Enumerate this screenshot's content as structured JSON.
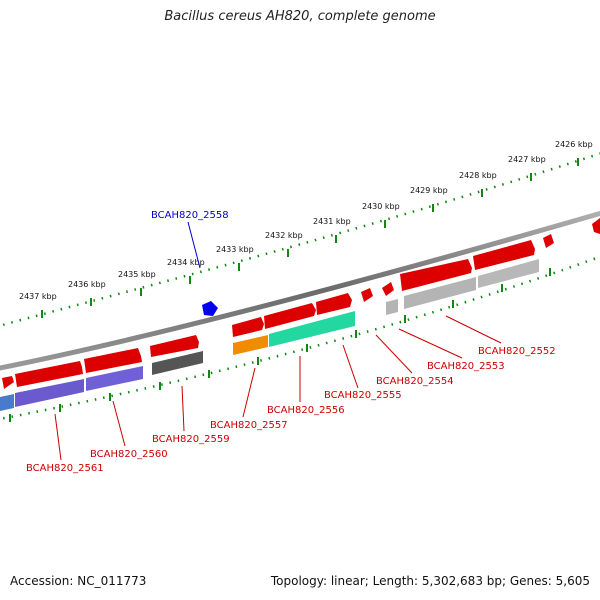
{
  "title": "Bacillus cereus AH820, complete genome",
  "footer": {
    "accession": "Accession: NC_011773",
    "topology": "Topology: linear; Length: 5,302,683 bp; Genes: 5,605"
  },
  "ticks": [
    {
      "kbp": 2437,
      "label": "2437 kbp"
    },
    {
      "kbp": 2436,
      "label": "2436 kbp"
    },
    {
      "kbp": 2435,
      "label": "2435 kbp"
    },
    {
      "kbp": 2434,
      "label": "2434 kbp"
    },
    {
      "kbp": 2433,
      "label": "2433 kbp"
    },
    {
      "kbp": 2432,
      "label": "2432 kbp"
    },
    {
      "kbp": 2431,
      "label": "2431 kbp"
    },
    {
      "kbp": 2430,
      "label": "2430 kbp"
    },
    {
      "kbp": 2429,
      "label": "2429 kbp"
    },
    {
      "kbp": 2428,
      "label": "2428 kbp"
    },
    {
      "kbp": 2427,
      "label": "2427 kbp"
    },
    {
      "kbp": 2426,
      "label": "2426 kbp"
    }
  ],
  "genes": [
    {
      "name": "BCAH820_2552",
      "color": "#dd0000"
    },
    {
      "name": "BCAH820_2553",
      "color": "#dd0000"
    },
    {
      "name": "BCAH820_2554",
      "color": "#dd0000"
    },
    {
      "name": "BCAH820_2555",
      "color": "#dd0000"
    },
    {
      "name": "BCAH820_2556",
      "color": "#dd0000"
    },
    {
      "name": "BCAH820_2557",
      "color": "#dd0000"
    },
    {
      "name": "BCAH820_2558",
      "color": "#0000cc"
    },
    {
      "name": "BCAH820_2559",
      "color": "#dd0000"
    },
    {
      "name": "BCAH820_2560",
      "color": "#dd0000"
    },
    {
      "name": "BCAH820_2561",
      "color": "#dd0000"
    }
  ],
  "colors": {
    "forward_gene": "#e00000",
    "reverse_gene_purple": "#6a5acd",
    "reverse_gene_gray": "#b4b4b4",
    "reverse_gene_dark": "#555555",
    "reverse_gene_teal": "#22d8a0",
    "reverse_gene_orange": "#f08c00",
    "small_feature": "#0000ee",
    "backbone": "#8a8a8a",
    "tick": "#118811"
  }
}
